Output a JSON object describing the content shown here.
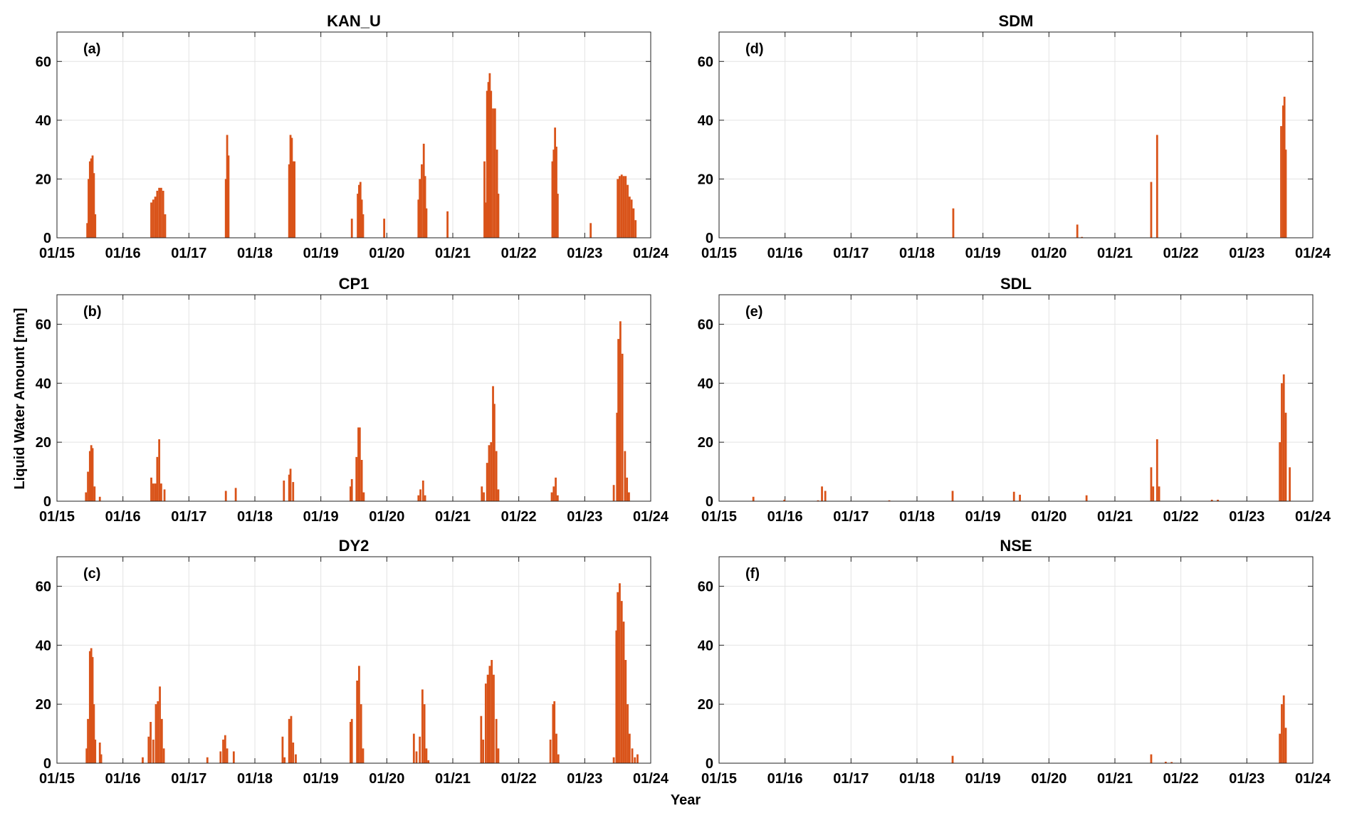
{
  "xlabel": "Year",
  "ylabel": "Liquid Water Amount [mm]",
  "chart_data": [
    {
      "type": "bar",
      "title": "KAN_U",
      "panel": "(a)",
      "color": "#d95319",
      "grid": true,
      "xlim": [
        2015,
        2024
      ],
      "ylim": [
        0,
        70
      ],
      "yticks": [
        0,
        20,
        40,
        60
      ],
      "xticks": [
        {
          "value": 2015,
          "label": "01/15"
        },
        {
          "value": 2016,
          "label": "01/16"
        },
        {
          "value": 2017,
          "label": "01/17"
        },
        {
          "value": 2018,
          "label": "01/18"
        },
        {
          "value": 2019,
          "label": "01/19"
        },
        {
          "value": 2020,
          "label": "01/20"
        },
        {
          "value": 2021,
          "label": "01/21"
        },
        {
          "value": 2022,
          "label": "01/22"
        },
        {
          "value": 2023,
          "label": "01/23"
        },
        {
          "value": 2024,
          "label": "01/24"
        }
      ],
      "x": [
        2015.46,
        2015.48,
        2015.5,
        2015.52,
        2015.54,
        2015.56,
        2015.58,
        2016.43,
        2016.46,
        2016.49,
        2016.52,
        2016.55,
        2016.58,
        2016.61,
        2016.64,
        2017.56,
        2017.58,
        2017.6,
        2018.52,
        2018.54,
        2018.56,
        2018.58,
        2018.6,
        2019.47,
        2019.56,
        2019.58,
        2019.6,
        2019.62,
        2019.64,
        2019.96,
        2020.48,
        2020.5,
        2020.53,
        2020.56,
        2020.58,
        2020.6,
        2020.92,
        2021.48,
        2021.5,
        2021.52,
        2021.54,
        2021.56,
        2021.58,
        2021.61,
        2021.64,
        2021.67,
        2021.69,
        2022.51,
        2022.53,
        2022.55,
        2022.57,
        2022.59,
        2023.09,
        2023.5,
        2023.53,
        2023.56,
        2023.59,
        2023.62,
        2023.65,
        2023.68,
        2023.71,
        2023.74,
        2023.77
      ],
      "values": [
        5,
        20,
        26,
        27,
        28,
        22,
        8,
        12,
        13,
        14,
        16,
        17,
        17,
        16,
        8,
        20,
        35,
        28,
        25,
        35,
        34,
        26,
        26,
        6.5,
        15,
        18,
        19,
        13,
        8,
        6.5,
        13,
        20,
        25,
        32,
        21,
        10,
        9,
        26,
        12,
        50,
        53,
        56,
        50,
        44,
        44,
        30,
        15,
        26,
        30,
        37.5,
        31,
        15,
        5,
        20,
        21,
        21.5,
        21,
        21,
        18,
        14,
        13,
        10,
        6
      ]
    },
    {
      "type": "bar",
      "title": "CP1",
      "panel": "(b)",
      "color": "#d95319",
      "grid": true,
      "xlim": [
        2015,
        2024
      ],
      "ylim": [
        0,
        70
      ],
      "yticks": [
        0,
        20,
        40,
        60
      ],
      "xticks": [
        {
          "value": 2015,
          "label": "01/15"
        },
        {
          "value": 2016,
          "label": "01/16"
        },
        {
          "value": 2017,
          "label": "01/17"
        },
        {
          "value": 2018,
          "label": "01/18"
        },
        {
          "value": 2019,
          "label": "01/19"
        },
        {
          "value": 2020,
          "label": "01/20"
        },
        {
          "value": 2021,
          "label": "01/21"
        },
        {
          "value": 2022,
          "label": "01/22"
        },
        {
          "value": 2023,
          "label": "01/23"
        },
        {
          "value": 2024,
          "label": "01/24"
        }
      ],
      "x": [
        2015.44,
        2015.47,
        2015.5,
        2015.52,
        2015.54,
        2015.57,
        2015.65,
        2016.43,
        2016.46,
        2016.49,
        2016.52,
        2016.55,
        2016.58,
        2016.63,
        2017.56,
        2017.71,
        2018.44,
        2018.52,
        2018.54,
        2018.58,
        2019.45,
        2019.47,
        2019.54,
        2019.57,
        2019.59,
        2019.62,
        2019.65,
        2020.48,
        2020.51,
        2020.55,
        2020.58,
        2021.44,
        2021.47,
        2021.52,
        2021.55,
        2021.58,
        2021.61,
        2021.63,
        2021.66,
        2021.69,
        2022.5,
        2022.53,
        2022.56,
        2022.59,
        2023.44,
        2023.49,
        2023.51,
        2023.54,
        2023.57,
        2023.61,
        2023.64,
        2023.67
      ],
      "values": [
        3,
        10,
        17,
        19,
        18,
        5,
        1.5,
        8,
        6,
        6,
        15,
        21,
        6,
        4,
        3.5,
        4.5,
        7,
        9,
        11,
        6.5,
        5,
        7.5,
        15,
        25,
        25,
        14,
        3,
        2,
        4,
        7,
        2,
        5,
        3,
        13,
        19,
        20,
        39,
        33,
        17,
        4,
        3,
        5,
        8,
        2,
        5.5,
        30,
        55,
        61,
        50,
        17,
        8,
        3
      ]
    },
    {
      "type": "bar",
      "title": "DY2",
      "panel": "(c)",
      "color": "#d95319",
      "grid": true,
      "xlim": [
        2015,
        2024
      ],
      "ylim": [
        0,
        70
      ],
      "yticks": [
        0,
        20,
        40,
        60
      ],
      "xticks": [
        {
          "value": 2015,
          "label": "01/15"
        },
        {
          "value": 2016,
          "label": "01/16"
        },
        {
          "value": 2017,
          "label": "01/17"
        },
        {
          "value": 2018,
          "label": "01/18"
        },
        {
          "value": 2019,
          "label": "01/19"
        },
        {
          "value": 2020,
          "label": "01/20"
        },
        {
          "value": 2021,
          "label": "01/21"
        },
        {
          "value": 2022,
          "label": "01/22"
        },
        {
          "value": 2023,
          "label": "01/23"
        },
        {
          "value": 2024,
          "label": "01/24"
        }
      ],
      "x": [
        2015.45,
        2015.47,
        2015.5,
        2015.52,
        2015.54,
        2015.56,
        2015.58,
        2015.65,
        2015.67,
        2016.3,
        2016.39,
        2016.42,
        2016.46,
        2016.5,
        2016.53,
        2016.56,
        2016.59,
        2016.62,
        2017.28,
        2017.48,
        2017.52,
        2017.55,
        2017.58,
        2017.68,
        2018.42,
        2018.45,
        2018.52,
        2018.55,
        2018.58,
        2018.62,
        2019.45,
        2019.47,
        2019.55,
        2019.58,
        2019.61,
        2019.64,
        2020.41,
        2020.45,
        2020.5,
        2020.54,
        2020.57,
        2020.6,
        2020.63,
        2021.43,
        2021.46,
        2021.5,
        2021.53,
        2021.56,
        2021.59,
        2021.62,
        2021.66,
        2021.69,
        2022.48,
        2022.52,
        2022.54,
        2022.57,
        2022.6,
        2023.44,
        2023.48,
        2023.5,
        2023.53,
        2023.56,
        2023.59,
        2023.62,
        2023.65,
        2023.68,
        2023.72,
        2023.76,
        2023.8
      ],
      "values": [
        5,
        15,
        38,
        39,
        36,
        20,
        8,
        7,
        3,
        2,
        9,
        14,
        8,
        20,
        21,
        26,
        15,
        5,
        2,
        4,
        8,
        9.5,
        5,
        4,
        9,
        2,
        15,
        16,
        7,
        3,
        14,
        15,
        28,
        33,
        20,
        5,
        10,
        4,
        9,
        25,
        20,
        5,
        1,
        16,
        8,
        27,
        30,
        33,
        35,
        30,
        15,
        5,
        8,
        20,
        21,
        10,
        3,
        2,
        45,
        58,
        61,
        55,
        48,
        35,
        20,
        10,
        5,
        2,
        3
      ]
    },
    {
      "type": "bar",
      "title": "SDM",
      "panel": "(d)",
      "color": "#d95319",
      "grid": true,
      "xlim": [
        2015,
        2024
      ],
      "ylim": [
        0,
        70
      ],
      "yticks": [
        0,
        20,
        40,
        60
      ],
      "xticks": [
        {
          "value": 2015,
          "label": "01/15"
        },
        {
          "value": 2016,
          "label": "01/16"
        },
        {
          "value": 2017,
          "label": "01/17"
        },
        {
          "value": 2018,
          "label": "01/18"
        },
        {
          "value": 2019,
          "label": "01/19"
        },
        {
          "value": 2020,
          "label": "01/20"
        },
        {
          "value": 2021,
          "label": "01/21"
        },
        {
          "value": 2022,
          "label": "01/22"
        },
        {
          "value": 2023,
          "label": "01/23"
        },
        {
          "value": 2024,
          "label": "01/24"
        }
      ],
      "x": [
        2018.55,
        2020.43,
        2020.5,
        2021.55,
        2021.64,
        2023.52,
        2023.55,
        2023.57,
        2023.59
      ],
      "values": [
        10,
        4.5,
        0.3,
        19,
        35,
        38,
        45,
        48,
        30
      ]
    },
    {
      "type": "bar",
      "title": "SDL",
      "panel": "(e)",
      "color": "#d95319",
      "grid": true,
      "xlim": [
        2015,
        2024
      ],
      "ylim": [
        0,
        70
      ],
      "yticks": [
        0,
        20,
        40,
        60
      ],
      "xticks": [
        {
          "value": 2015,
          "label": "01/15"
        },
        {
          "value": 2016,
          "label": "01/16"
        },
        {
          "value": 2017,
          "label": "01/17"
        },
        {
          "value": 2018,
          "label": "01/18"
        },
        {
          "value": 2019,
          "label": "01/19"
        },
        {
          "value": 2020,
          "label": "01/20"
        },
        {
          "value": 2021,
          "label": "01/21"
        },
        {
          "value": 2022,
          "label": "01/22"
        },
        {
          "value": 2023,
          "label": "01/23"
        },
        {
          "value": 2024,
          "label": "01/24"
        }
      ],
      "x": [
        2015.52,
        2015.99,
        2016.5,
        2016.56,
        2016.61,
        2017.58,
        2018.54,
        2019.47,
        2019.56,
        2020.57,
        2021.55,
        2021.58,
        2021.64,
        2021.67,
        2022.47,
        2022.56,
        2023.5,
        2023.53,
        2023.56,
        2023.59,
        2023.65
      ],
      "values": [
        1.5,
        0.5,
        0.3,
        5,
        3.5,
        0.3,
        3.5,
        3.2,
        2.2,
        2,
        11.5,
        5,
        21,
        5,
        0.5,
        0.5,
        20,
        40,
        43,
        30,
        11.5
      ]
    },
    {
      "type": "bar",
      "title": "NSE",
      "panel": "(f)",
      "color": "#d95319",
      "grid": true,
      "xlim": [
        2015,
        2024
      ],
      "ylim": [
        0,
        70
      ],
      "yticks": [
        0,
        20,
        40,
        60
      ],
      "xticks": [
        {
          "value": 2015,
          "label": "01/15"
        },
        {
          "value": 2016,
          "label": "01/16"
        },
        {
          "value": 2017,
          "label": "01/17"
        },
        {
          "value": 2018,
          "label": "01/18"
        },
        {
          "value": 2019,
          "label": "01/19"
        },
        {
          "value": 2020,
          "label": "01/20"
        },
        {
          "value": 2021,
          "label": "01/21"
        },
        {
          "value": 2022,
          "label": "01/22"
        },
        {
          "value": 2023,
          "label": "01/23"
        },
        {
          "value": 2024,
          "label": "01/24"
        }
      ],
      "x": [
        2018.54,
        2021.55,
        2021.77,
        2021.86,
        2023.5,
        2023.53,
        2023.56,
        2023.59
      ],
      "values": [
        2.5,
        3,
        0.5,
        0.4,
        10,
        20,
        23,
        12
      ]
    }
  ]
}
